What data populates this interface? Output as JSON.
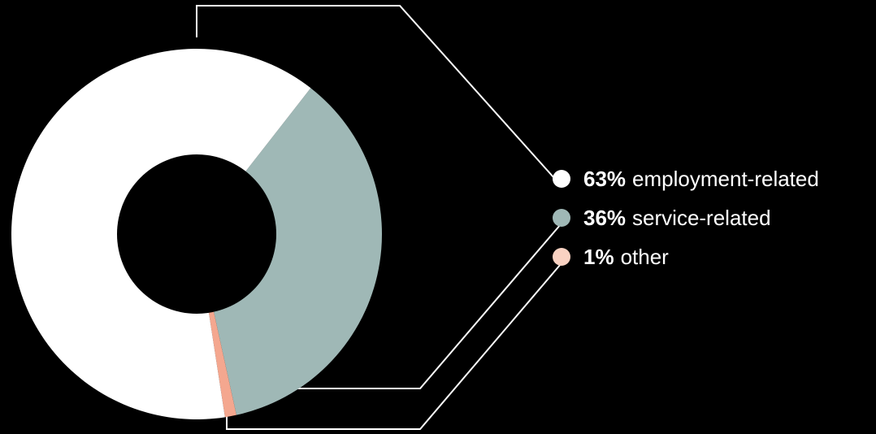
{
  "chart_data": {
    "type": "pie",
    "style": "donut",
    "categories": [
      "employment-related",
      "service-related",
      "other"
    ],
    "values": [
      63,
      36,
      1
    ],
    "percent_labels": [
      "63%",
      "36%",
      "1%"
    ],
    "colors": [
      "#ffffff",
      "#9fb8b6",
      "#f4a78f"
    ],
    "legend_colors": [
      "#ffffff",
      "#9fb8b6",
      "#f9d2c2"
    ],
    "legend_placement": "right",
    "background": "#000000",
    "connector_color": "#ffffff"
  }
}
